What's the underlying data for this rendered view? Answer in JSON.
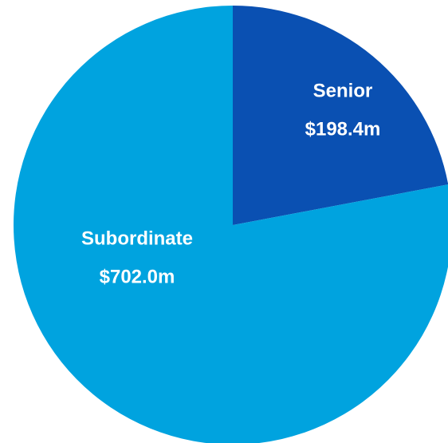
{
  "chart_data": {
    "type": "pie",
    "categories": [
      "Senior",
      "Subordinate"
    ],
    "values": [
      198.4,
      702.0
    ],
    "value_labels": [
      "$198.4m",
      "$702.0m"
    ],
    "colors": [
      "#0a50b2",
      "#00a3df"
    ]
  }
}
